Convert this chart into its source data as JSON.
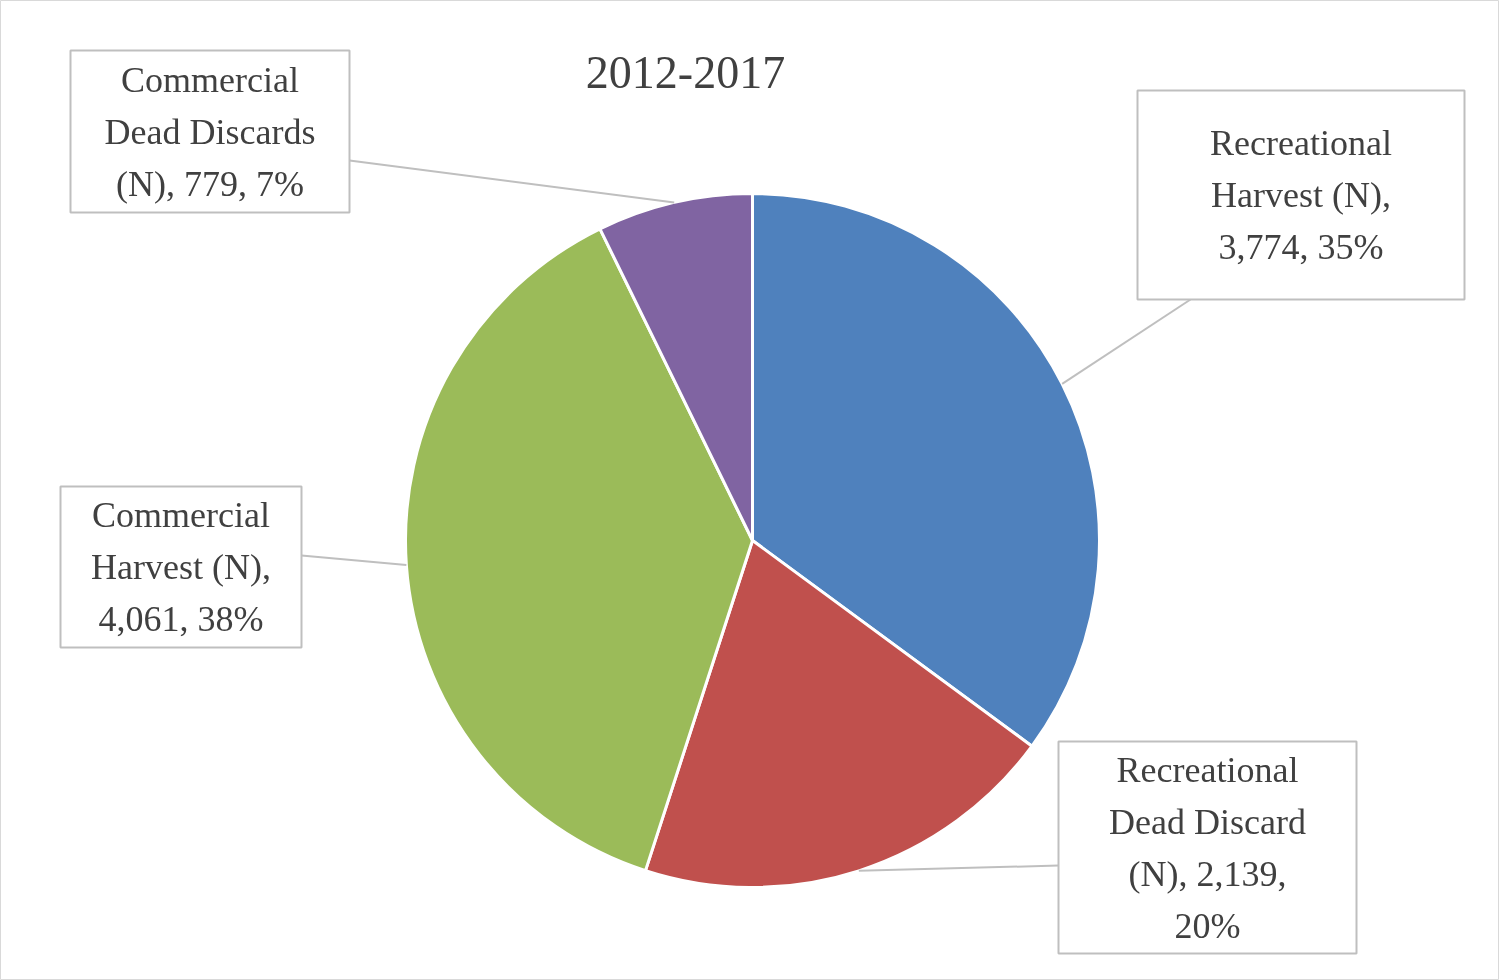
{
  "chart_data": {
    "type": "pie",
    "title": "2012-2017",
    "categories": [
      "Recreational Harvest (N)",
      "Recreational Dead Discard (N)",
      "Commercial Harvest (N)",
      "Commercial Dead Discards (N)"
    ],
    "values": [
      3774,
      2139,
      4061,
      779
    ],
    "value_labels": [
      ", 3,774, 35%",
      ", 2,139, 20%",
      ", 4,061, 38%",
      ", 779, 7%"
    ],
    "colors": [
      "#4f81bd",
      "#c0504d",
      "#9bbb59",
      "#8064a2"
    ]
  }
}
